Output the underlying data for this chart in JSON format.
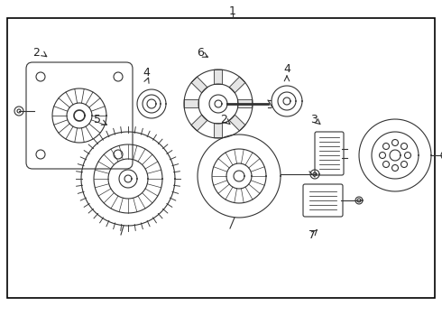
{
  "background_color": "#ffffff",
  "border_color": "#000000",
  "line_color": "#333333",
  "label_color": "#222222",
  "figsize": [
    4.9,
    3.6
  ],
  "dpi": 100
}
